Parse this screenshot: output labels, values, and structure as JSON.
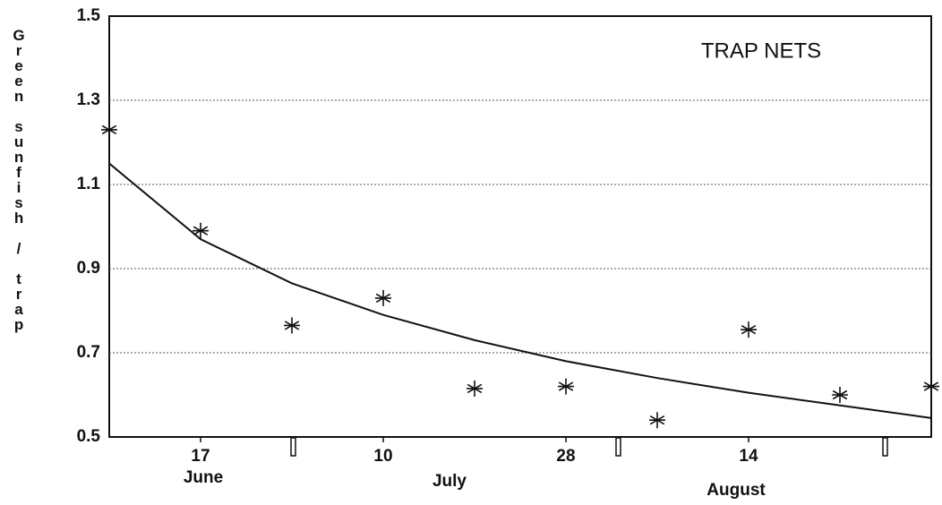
{
  "chart_data": {
    "type": "scatter",
    "title": "TRAP NETS",
    "y_label": "Green sunfish / trap",
    "x": [
      0,
      1,
      2,
      3,
      4,
      5,
      6,
      7,
      8,
      9
    ],
    "series": [
      {
        "type": "scatter",
        "color": "#111111",
        "values": [
          1.23,
          0.99,
          0.765,
          0.83,
          0.615,
          0.62,
          0.54,
          0.755,
          0.6,
          0.62
        ]
      },
      {
        "type": "line",
        "color": "#111111",
        "values": [
          1.15,
          0.97,
          0.865,
          0.79,
          0.73,
          0.68,
          0.64,
          0.605,
          0.575,
          0.545
        ]
      }
    ],
    "xlim": [
      0,
      9
    ],
    "xticks": [
      {
        "value": 1,
        "label": "17"
      },
      {
        "value": 3,
        "label": "10"
      },
      {
        "value": 5,
        "label": "28"
      },
      {
        "value": 7,
        "label": "14"
      }
    ],
    "months": [
      "June",
      "July",
      "August"
    ],
    "ylim": [
      0.5,
      1.5
    ],
    "yticks": [
      0.5,
      0.7,
      0.9,
      1.1,
      1.3,
      1.5
    ],
    "grid": true
  }
}
